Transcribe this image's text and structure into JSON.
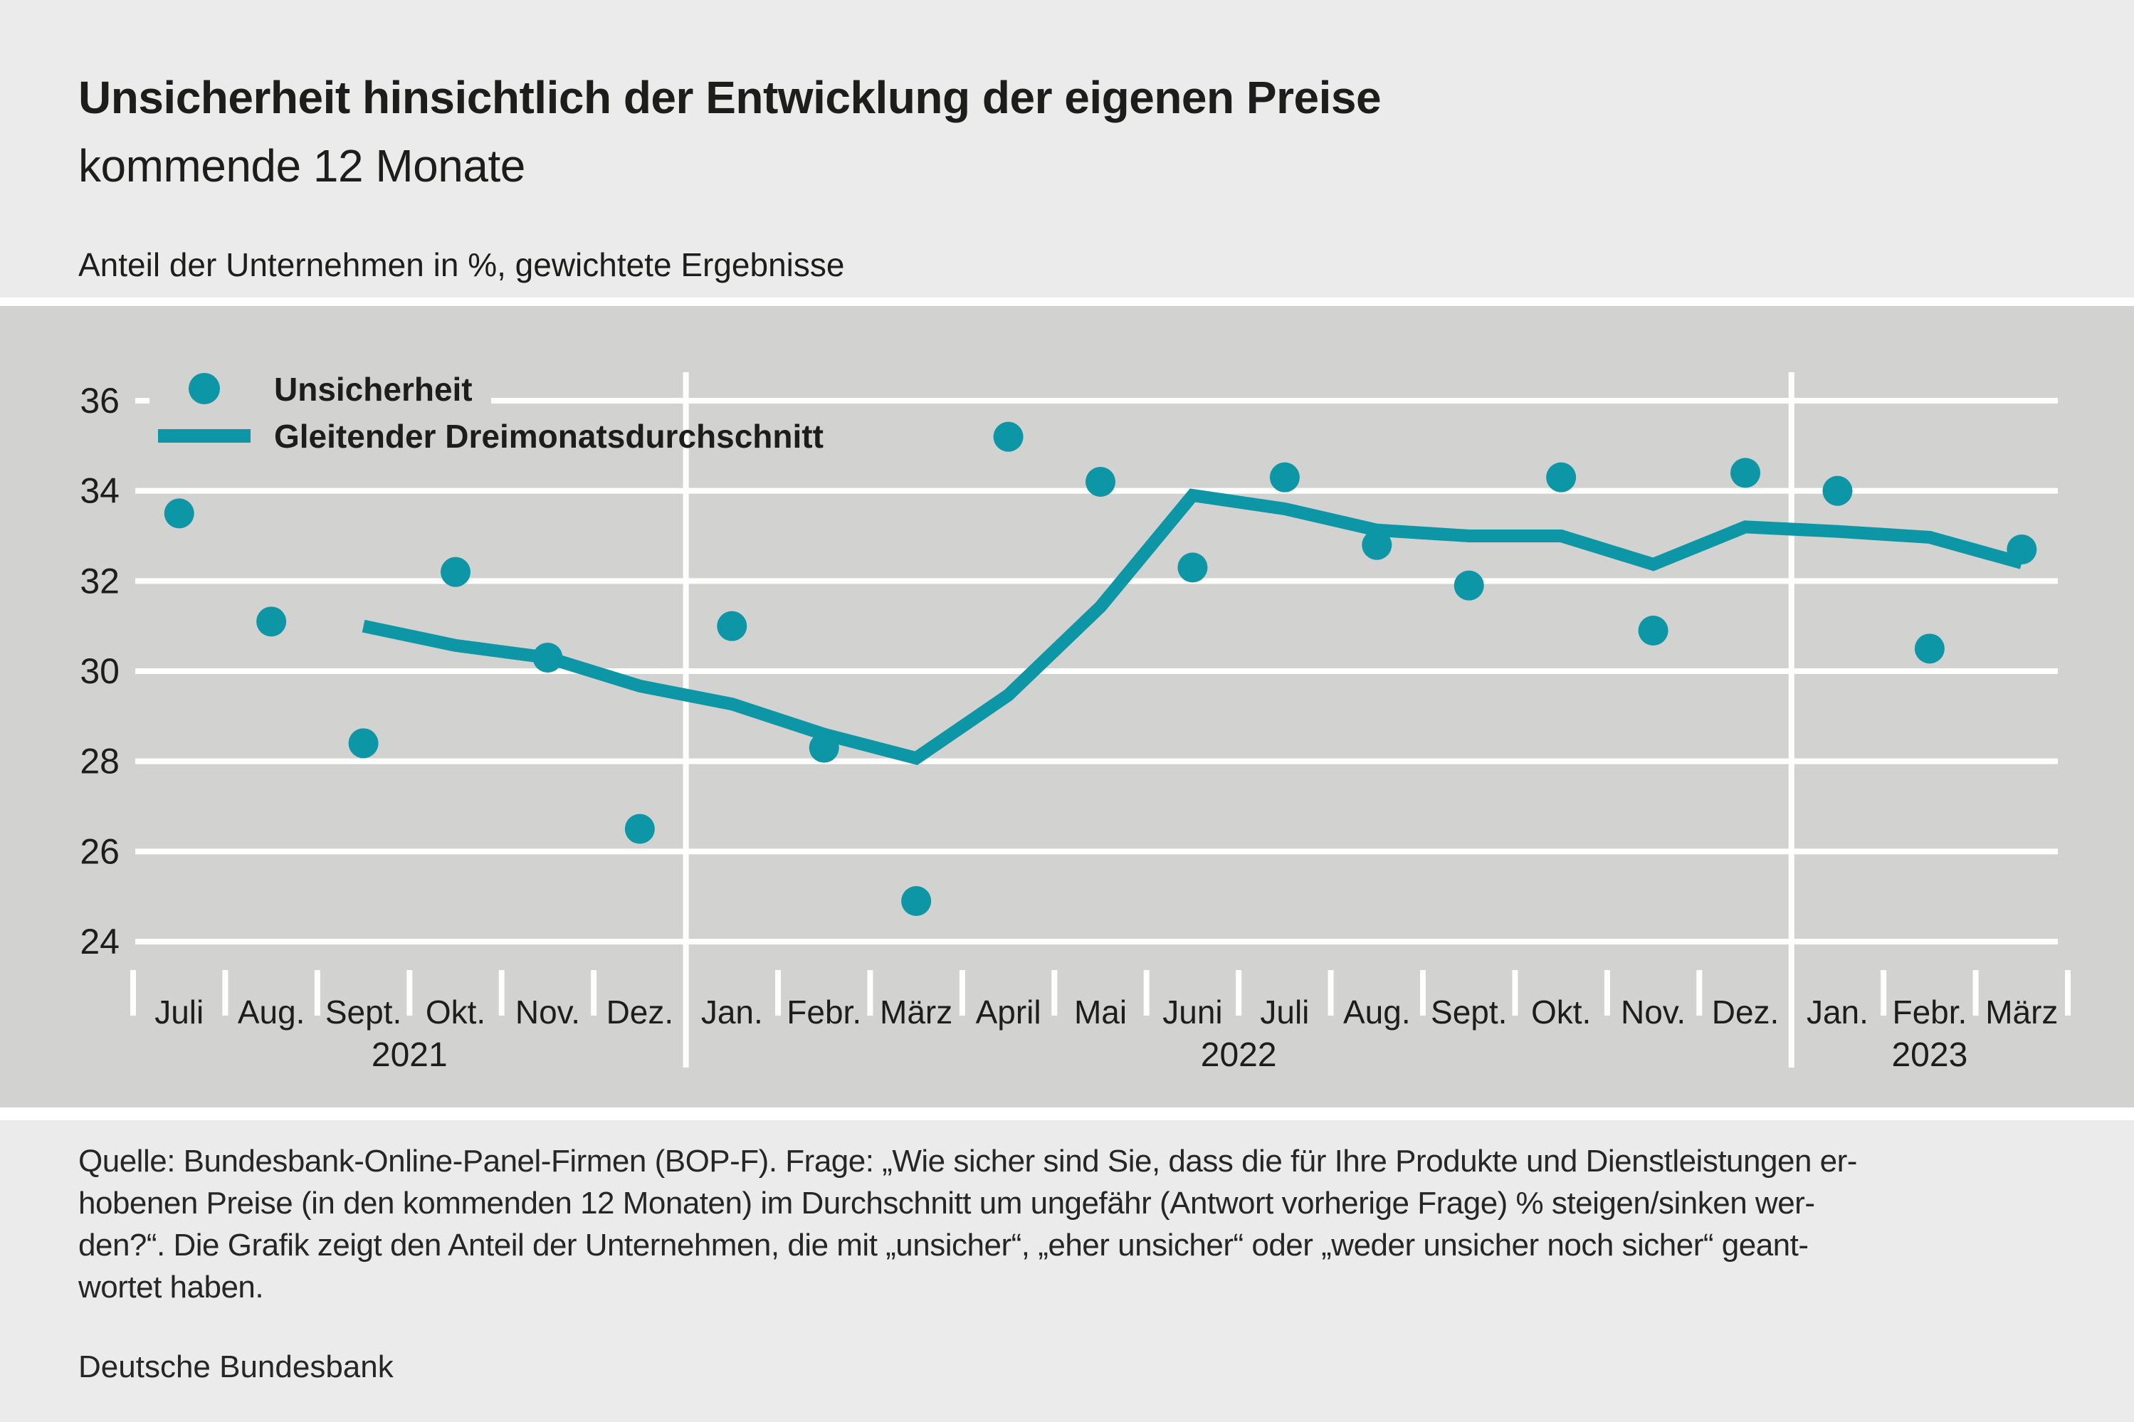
{
  "header": {
    "title": "Unsicherheit hinsichtlich der Entwicklung der eigenen Preise",
    "subtitle": "kommende 12 Monate",
    "note": "Anteil der Unternehmen in %, gewichtete Ergebnisse"
  },
  "legend": {
    "dot_label": "Unsicherheit",
    "line_label": "Gleitender Dreimonatsdurchschnitt"
  },
  "footer": {
    "lines": [
      "Quelle: Bundesbank-Online-Panel-Firmen (BOP-F). Frage: „Wie sicher sind Sie, dass die für Ihre Produkte und Dienstleistungen er-",
      "hobenen Preise (in den kommenden 12 Monaten) im Durchschnitt um ungefähr (Antwort vorherige Frage) % steigen/sinken wer-",
      "den?“. Die Grafik zeigt den Anteil der Unternehmen, die mit „unsicher“, „eher unsicher“ oder „weder unsicher noch sicher“ geant-",
      "wortet haben."
    ],
    "source": "Deutsche Bundesbank"
  },
  "colors": {
    "accent_teal": "#0d96a5",
    "band_background": "#d2d2d0",
    "section_background": "#ebebeb",
    "grid": "#ffffff",
    "text": "#1d1d1b"
  },
  "chart_data": {
    "type": "scatter",
    "title": "Unsicherheit hinsichtlich der Entwicklung der eigenen Preise – kommende 12 Monate",
    "ylabel": "Anteil der Unternehmen in %, gewichtete Ergebnisse",
    "ylim": [
      24,
      36
    ],
    "yticks": [
      24,
      26,
      28,
      30,
      32,
      34,
      36
    ],
    "grid": true,
    "legend_position": "top-left",
    "months": [
      "Juli",
      "Aug.",
      "Sept.",
      "Okt.",
      "Nov.",
      "Dez.",
      "Jan.",
      "Febr.",
      "März",
      "April",
      "Mai",
      "Juni",
      "Juli",
      "Aug.",
      "Sept.",
      "Okt.",
      "Nov.",
      "Dez.",
      "Jan.",
      "Febr.",
      "März"
    ],
    "years": [
      {
        "label": "2021",
        "start": 0,
        "count": 6
      },
      {
        "label": "2022",
        "start": 6,
        "count": 12
      },
      {
        "label": "2023",
        "start": 18,
        "count": 3
      }
    ],
    "series": [
      {
        "name": "Unsicherheit",
        "type": "scatter",
        "start_index": 0,
        "values": [
          33.5,
          31.1,
          28.4,
          32.2,
          30.3,
          26.5,
          31.0,
          28.3,
          24.9,
          35.2,
          34.2,
          32.3,
          34.3,
          32.8,
          31.9,
          34.3,
          30.9,
          34.4,
          34.0,
          30.5,
          32.7
        ]
      },
      {
        "name": "Gleitender Dreimonatsdurchschnitt",
        "type": "line",
        "start_index": 2,
        "values": [
          31.0,
          30.57,
          30.3,
          29.67,
          29.27,
          28.6,
          28.07,
          29.47,
          31.43,
          33.9,
          33.6,
          33.13,
          33.0,
          33.0,
          32.37,
          33.2,
          33.1,
          32.97,
          32.4
        ]
      }
    ]
  }
}
